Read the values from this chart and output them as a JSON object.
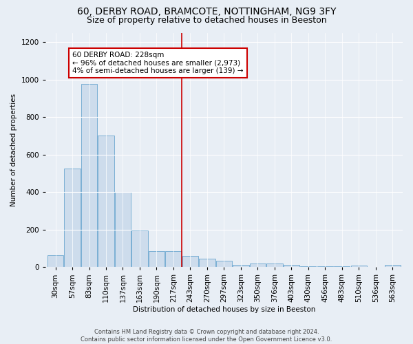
{
  "title1": "60, DERBY ROAD, BRAMCOTE, NOTTINGHAM, NG9 3FY",
  "title2": "Size of property relative to detached houses in Beeston",
  "xlabel": "Distribution of detached houses by size in Beeston",
  "ylabel": "Number of detached properties",
  "categories": [
    "30sqm",
    "57sqm",
    "83sqm",
    "110sqm",
    "137sqm",
    "163sqm",
    "190sqm",
    "217sqm",
    "243sqm",
    "270sqm",
    "297sqm",
    "323sqm",
    "350sqm",
    "376sqm",
    "403sqm",
    "430sqm",
    "456sqm",
    "483sqm",
    "510sqm",
    "536sqm",
    "563sqm"
  ],
  "values": [
    65,
    525,
    975,
    700,
    400,
    195,
    85,
    85,
    60,
    45,
    35,
    12,
    18,
    18,
    12,
    5,
    5,
    5,
    8,
    0,
    12
  ],
  "bar_color": "#cddcec",
  "bar_edge_color": "#7aafd4",
  "vline_x": 7.5,
  "vline_color": "#cc0000",
  "annotation_text": "60 DERBY ROAD: 228sqm\n← 96% of detached houses are smaller (2,973)\n4% of semi-detached houses are larger (139) →",
  "annotation_box_color": "#ffffff",
  "annotation_box_edge": "#cc0000",
  "footer": "Contains HM Land Registry data © Crown copyright and database right 2024.\nContains public sector information licensed under the Open Government Licence v3.0.",
  "bg_color": "#e8eef5",
  "ylim": [
    0,
    1250
  ],
  "title1_fontsize": 10,
  "title2_fontsize": 9
}
